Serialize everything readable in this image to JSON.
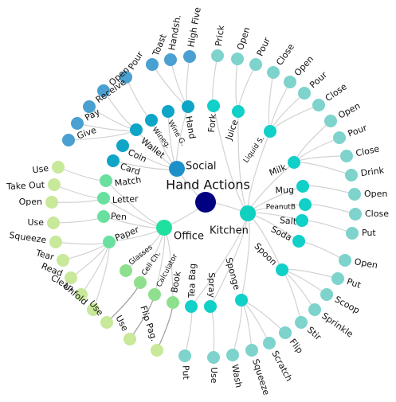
{
  "root": {
    "label": "Hand Actions",
    "color": "#000080"
  },
  "groups": [
    {
      "label": "Social",
      "color": "#1e90c8",
      "children": [
        {
          "label": "Hand",
          "color": "#0ea5c6",
          "children": [
            "High Five",
            "Handsh.",
            "Toast"
          ]
        },
        {
          "label": "Wine G.",
          "color": "#0ea5c6",
          "children": []
        },
        {
          "label": "Wineg.",
          "color": "#0ea5c6",
          "children": [
            "Pour"
          ]
        },
        {
          "label": "Wallet",
          "color": "#0ea5c6",
          "children": [
            "Open",
            "Receive",
            "Pay",
            "Give"
          ]
        },
        {
          "label": "Coin",
          "color": "#0ea5c6",
          "children": []
        },
        {
          "label": "Card",
          "color": "#0ea5c6",
          "children": []
        }
      ]
    },
    {
      "label": "Office",
      "color": "#20e0a0",
      "children": [
        {
          "label": "Match",
          "color": "#6ae0a0",
          "children": [
            "Use"
          ]
        },
        {
          "label": "Letter",
          "color": "#6ae0a0",
          "children": [
            "Take Out",
            "Open"
          ]
        },
        {
          "label": "Pen",
          "color": "#6ae0a0",
          "children": [
            "Use"
          ]
        },
        {
          "label": "Paper",
          "color": "#6ae0a0",
          "children": [
            "Squeeze",
            "Tear",
            "Read",
            "Clean",
            "Unfold"
          ]
        },
        {
          "label": "Glasses",
          "color": "#8ee08e",
          "children": []
        },
        {
          "label": "Cell Ch.",
          "color": "#8ee08e",
          "children": [
            "Use"
          ]
        },
        {
          "label": "Calculator",
          "color": "#8ee08e",
          "children": [
            "Use"
          ]
        },
        {
          "label": "Book",
          "color": "#8ee08e",
          "children": [
            "Flip Pag."
          ]
        }
      ]
    },
    {
      "label": "Kitchen",
      "color": "#10d0c0",
      "children": [
        {
          "label": "Tea Bag",
          "color": "#10d0c8",
          "children": [
            "Put"
          ]
        },
        {
          "label": "Spray",
          "color": "#10d0c8",
          "children": [
            "Use"
          ]
        },
        {
          "label": "Sponge",
          "color": "#10d0c8",
          "children": [
            "Wash",
            "Squeeze",
            "Scratch",
            "Flip"
          ]
        },
        {
          "label": "Spoon",
          "color": "#10d0c8",
          "children": [
            "Stir",
            "Sprinkle",
            "Scoop",
            "Put"
          ]
        },
        {
          "label": "Soda",
          "color": "#10d0c8",
          "children": [
            "Open"
          ]
        },
        {
          "label": "Salt",
          "color": "#10d0c8",
          "children": [
            "Put"
          ]
        },
        {
          "label": "PeanutB",
          "color": "#10d0c8",
          "children": [
            "Close"
          ]
        },
        {
          "label": "Mug",
          "color": "#10d0c8",
          "children": [
            "Open"
          ]
        },
        {
          "label": "Milk",
          "color": "#10d0c8",
          "children": [
            "Drink",
            "Close",
            "Pour",
            "Open"
          ]
        },
        {
          "label": "Liquid S.",
          "color": "#10d0c8",
          "children": [
            "Close",
            "Pour",
            "Open",
            "Close"
          ]
        },
        {
          "label": "Juice",
          "color": "#10d0c8",
          "children": [
            "Pour",
            "Open"
          ]
        },
        {
          "label": "Fork",
          "color": "#10d0c8",
          "children": [
            "Prick"
          ]
        }
      ]
    }
  ],
  "leaf_colors": {
    "Social": "#4aa0d0",
    "Office": "#c8e89a",
    "Kitchen": "#7ed3cc"
  }
}
